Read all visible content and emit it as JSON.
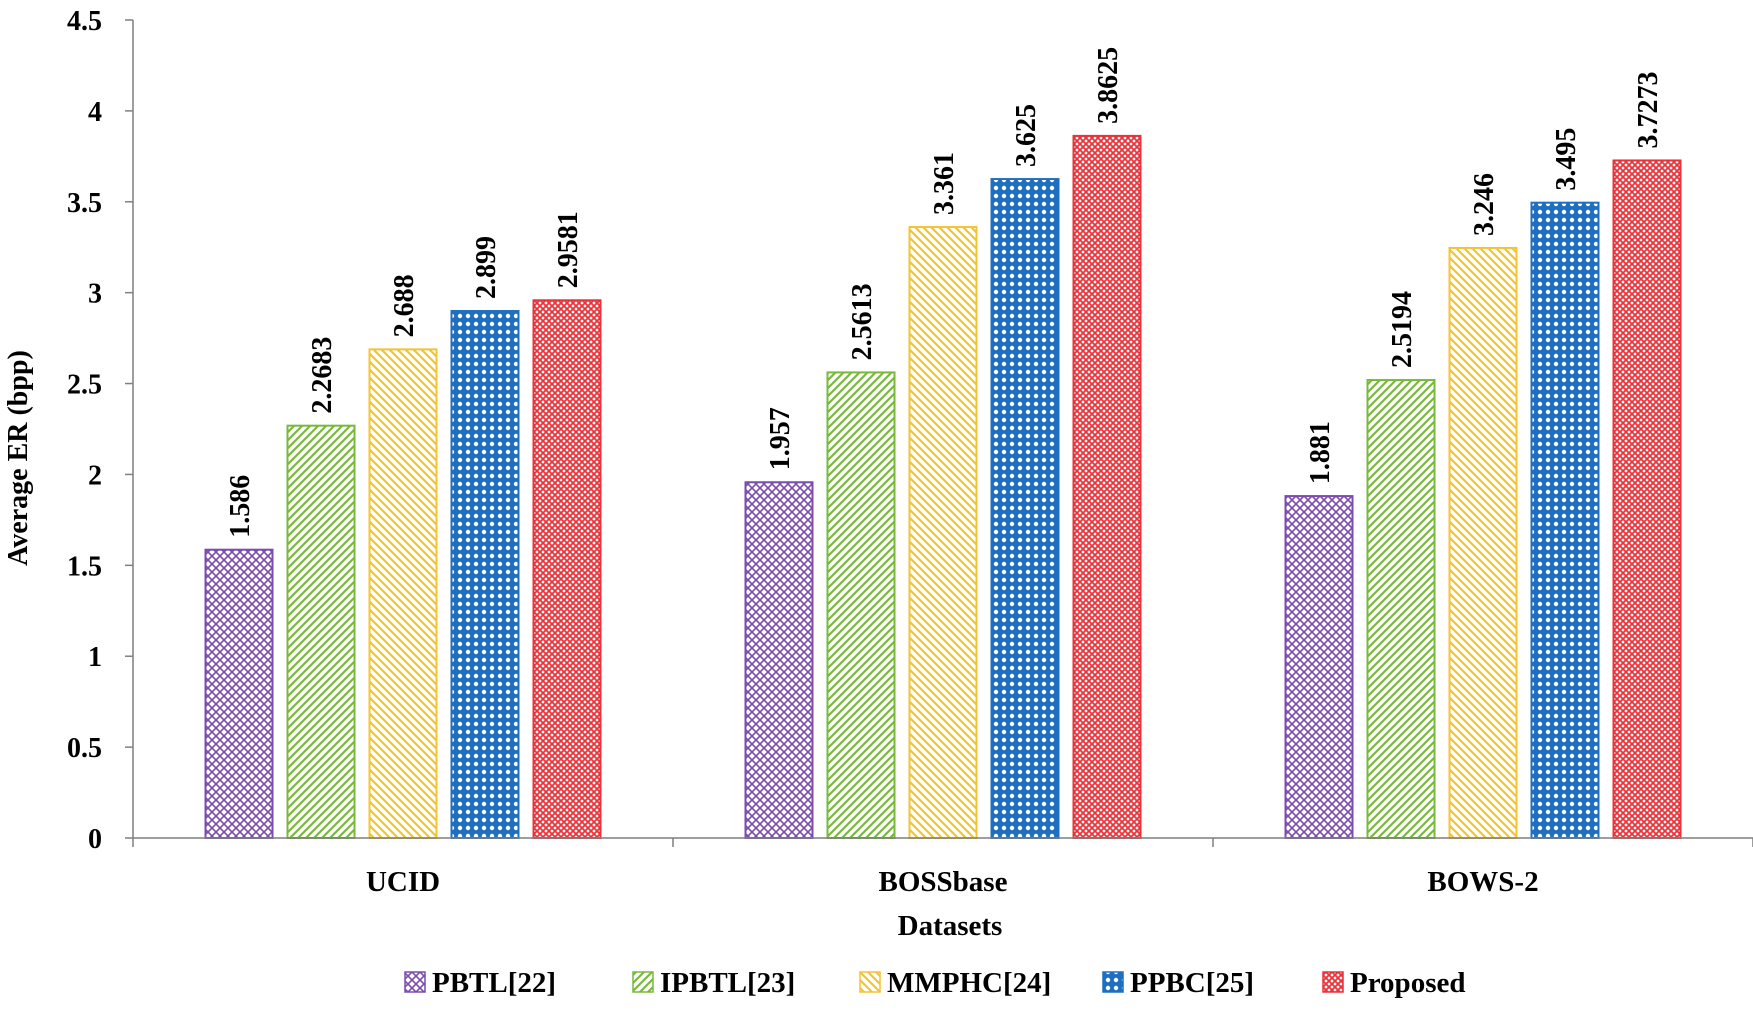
{
  "chart_data": {
    "type": "bar",
    "title": "",
    "xlabel": "Datasets",
    "ylabel": "Average ER (bpp)",
    "ylim": [
      0,
      4.5
    ],
    "ytick_step": 0.5,
    "y_tick_labels": [
      "0",
      "0.5",
      "1",
      "1.5",
      "2",
      "2.5",
      "3",
      "3.5",
      "4",
      "4.5"
    ],
    "categories": [
      "UCID",
      "BOSSbase",
      "BOWS-2"
    ],
    "legend_position": "bottom",
    "series": [
      {
        "name": "PBTL[22]",
        "values": [
          1.586,
          1.957,
          1.881
        ],
        "labels": [
          "1.586",
          "1.957",
          "1.881"
        ],
        "color": "#7b4bb0",
        "pattern": "crosshatch-diagonal"
      },
      {
        "name": "IPBTL[23]",
        "values": [
          2.2683,
          2.5613,
          2.5194
        ],
        "labels": [
          "2.2683",
          "2.5613",
          "2.5194"
        ],
        "color": "#78b83c",
        "pattern": "diagonal-up"
      },
      {
        "name": "MMPHC[24]",
        "values": [
          2.688,
          3.361,
          3.246
        ],
        "labels": [
          "2.688",
          "3.361",
          "3.246"
        ],
        "color": "#f4c430",
        "pattern": "diagonal-down"
      },
      {
        "name": "PPBC[25]",
        "values": [
          2.899,
          3.625,
          3.495
        ],
        "labels": [
          "2.899",
          "3.625",
          "3.495"
        ],
        "color": "#1f6fc0",
        "pattern": "dots-grid"
      },
      {
        "name": "Proposed",
        "values": [
          2.9581,
          3.8625,
          3.7273
        ],
        "labels": [
          "2.9581",
          "3.8625",
          "3.7273"
        ],
        "color": "#e8333a",
        "pattern": "fine-crosshatch"
      }
    ]
  }
}
